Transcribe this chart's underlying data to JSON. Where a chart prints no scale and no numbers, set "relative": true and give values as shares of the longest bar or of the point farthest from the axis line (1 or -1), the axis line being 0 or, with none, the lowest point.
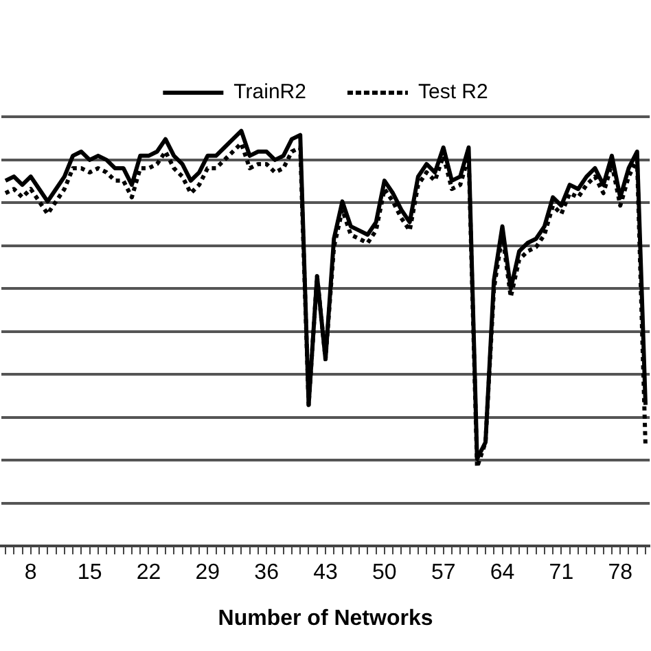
{
  "chart_data": {
    "type": "line",
    "xlabel": "Number of Networks",
    "relative": true,
    "grid": "y",
    "legend": "top",
    "categories": [
      null,
      null,
      null,
      "8",
      null,
      null,
      null,
      null,
      null,
      null,
      "15",
      null,
      null,
      null,
      null,
      null,
      null,
      "22",
      null,
      null,
      null,
      null,
      null,
      null,
      "29",
      null,
      null,
      null,
      null,
      null,
      null,
      "36",
      null,
      null,
      null,
      null,
      null,
      null,
      "43",
      null,
      null,
      null,
      null,
      null,
      null,
      "50",
      null,
      null,
      null,
      null,
      null,
      null,
      "57",
      null,
      null,
      null,
      null,
      null,
      null,
      "64",
      null,
      null,
      null,
      null,
      null,
      null,
      "71",
      null,
      null,
      null,
      null,
      null,
      null,
      "78",
      null,
      null,
      null
    ],
    "series": [
      {
        "name": "TrainR2",
        "color": "#000000",
        "line_style": "solid",
        "values": [
          0.88,
          0.89,
          0.87,
          0.89,
          0.86,
          0.83,
          0.86,
          0.89,
          0.94,
          0.95,
          0.93,
          0.94,
          0.93,
          0.91,
          0.91,
          0.87,
          0.94,
          0.94,
          0.95,
          0.98,
          0.94,
          0.92,
          0.88,
          0.9,
          0.94,
          0.94,
          0.96,
          0.98,
          1.0,
          0.94,
          0.95,
          0.95,
          0.93,
          0.94,
          0.98,
          0.99,
          0.34,
          0.65,
          0.45,
          0.74,
          0.83,
          0.77,
          0.76,
          0.75,
          0.78,
          0.88,
          0.85,
          0.81,
          0.78,
          0.89,
          0.92,
          0.9,
          0.96,
          0.88,
          0.89,
          0.96,
          0.21,
          0.25,
          0.64,
          0.77,
          0.62,
          0.71,
          0.73,
          0.74,
          0.77,
          0.84,
          0.82,
          0.87,
          0.86,
          0.89,
          0.91,
          0.87,
          0.94,
          0.84,
          0.91,
          0.95,
          0.34
        ]
      },
      {
        "name": "Test R2",
        "color": "#000000",
        "line_style": "dotted",
        "values": [
          0.85,
          0.86,
          0.84,
          0.86,
          0.83,
          0.8,
          0.83,
          0.86,
          0.91,
          0.91,
          0.9,
          0.91,
          0.9,
          0.88,
          0.88,
          0.84,
          0.91,
          0.91,
          0.92,
          0.95,
          0.91,
          0.89,
          0.85,
          0.87,
          0.91,
          0.91,
          0.93,
          0.95,
          0.97,
          0.91,
          0.92,
          0.92,
          0.9,
          0.91,
          0.95,
          0.96,
          0.34,
          0.65,
          0.45,
          0.72,
          0.81,
          0.75,
          0.74,
          0.73,
          0.76,
          0.86,
          0.83,
          0.79,
          0.76,
          0.87,
          0.9,
          0.88,
          0.94,
          0.86,
          0.87,
          0.94,
          0.19,
          0.25,
          0.62,
          0.75,
          0.6,
          0.69,
          0.71,
          0.72,
          0.75,
          0.82,
          0.8,
          0.85,
          0.84,
          0.87,
          0.89,
          0.85,
          0.92,
          0.82,
          0.89,
          0.93,
          0.24
        ]
      }
    ]
  }
}
